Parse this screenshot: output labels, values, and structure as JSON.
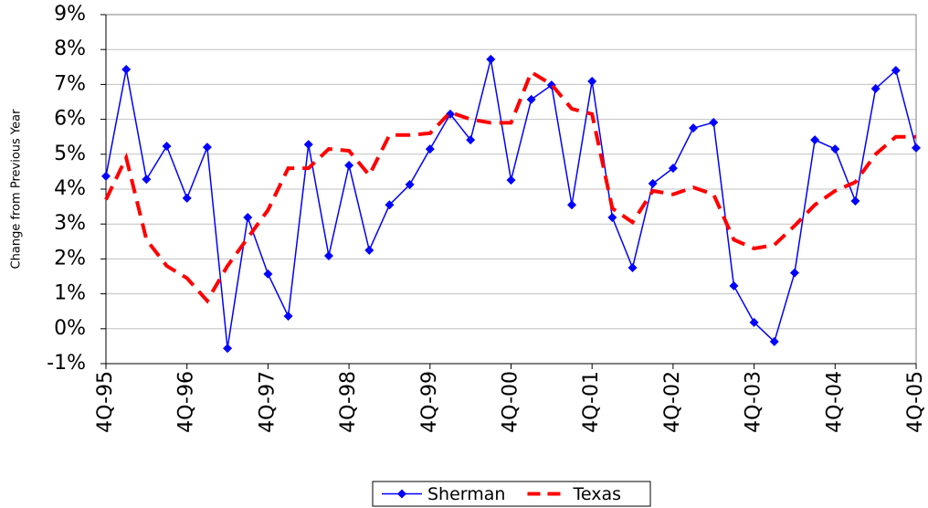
{
  "chart_data": {
    "type": "line",
    "y_label": "Change from Previous Year",
    "categories": [
      "4Q-95",
      null,
      null,
      null,
      "4Q-96",
      null,
      null,
      null,
      "4Q-97",
      null,
      null,
      null,
      "4Q-98",
      null,
      null,
      null,
      "4Q-99",
      null,
      null,
      null,
      "4Q-00",
      null,
      null,
      null,
      "4Q-01",
      null,
      null,
      null,
      "4Q-02",
      null,
      null,
      null,
      "4Q-03",
      null,
      null,
      null,
      "4Q-04",
      null,
      null,
      null,
      "4Q-05"
    ],
    "series": [
      {
        "name": "Sherman",
        "color": "#0000ff",
        "marker": "diamond",
        "values": [
          4.37,
          7.43,
          4.28,
          5.23,
          3.74,
          5.2,
          -0.56,
          3.19,
          1.57,
          0.36,
          5.28,
          2.09,
          4.68,
          2.25,
          3.55,
          4.13,
          5.15,
          6.15,
          5.41,
          7.72,
          4.26,
          6.57,
          6.98,
          3.55,
          7.09,
          3.19,
          1.75,
          4.16,
          4.6,
          5.75,
          5.91,
          1.23,
          0.18,
          -0.37,
          1.6,
          5.41,
          5.15,
          3.66,
          6.88,
          7.4,
          5.18
        ]
      },
      {
        "name": "Texas",
        "color": "#ff0000",
        "dashed": true,
        "values": [
          3.7,
          4.9,
          2.55,
          1.8,
          1.45,
          0.8,
          1.8,
          2.6,
          3.4,
          4.6,
          4.6,
          5.15,
          5.1,
          4.4,
          5.55,
          5.55,
          5.6,
          6.2,
          6.0,
          5.9,
          5.9,
          7.35,
          7.0,
          6.3,
          6.15,
          3.45,
          3.05,
          3.95,
          3.85,
          4.05,
          3.85,
          2.55,
          2.3,
          2.4,
          2.95,
          3.55,
          3.95,
          4.2,
          5.0,
          5.5,
          5.5
        ]
      }
    ],
    "ylim": [
      -1,
      9
    ],
    "yticks": [
      {
        "value": -1,
        "label": "-1%"
      },
      {
        "value": 0,
        "label": "0%"
      },
      {
        "value": 1,
        "label": "1%"
      },
      {
        "value": 2,
        "label": "2%"
      },
      {
        "value": 3,
        "label": "3%"
      },
      {
        "value": 4,
        "label": "4%"
      },
      {
        "value": 5,
        "label": "5%"
      },
      {
        "value": 6,
        "label": "6%"
      },
      {
        "value": 7,
        "label": "7%"
      },
      {
        "value": 8,
        "label": "8%"
      },
      {
        "value": 9,
        "label": "9%"
      }
    ],
    "grid": true,
    "legend": "bottom"
  }
}
